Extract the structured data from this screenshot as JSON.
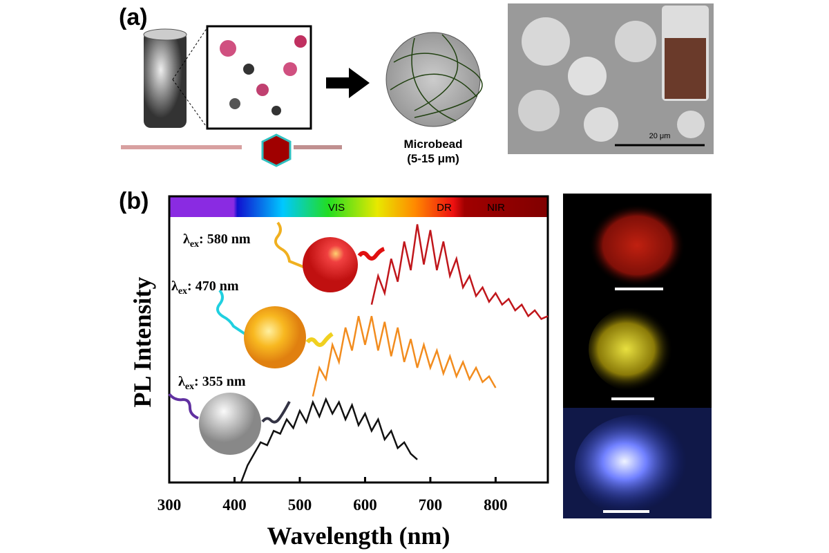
{
  "panel_a": {
    "label": "(a)",
    "microbead_label": "Microbead",
    "microbead_size": "(5-15 μm)",
    "scale_bar_label": "20 μm"
  },
  "panel_b": {
    "label": "(b)",
    "spectrum_labels": [
      "VIS",
      "DR",
      "NIR"
    ],
    "excitations": [
      {
        "symbol": "λ",
        "sub": "ex",
        "text": ": 580 nm"
      },
      {
        "symbol": "λ",
        "sub": "ex",
        "text": ": 470 nm"
      },
      {
        "symbol": "λ",
        "sub": "ex",
        "text": ": 355 nm"
      }
    ]
  },
  "chart_data": {
    "type": "line",
    "x_label": "Wavelength (nm)",
    "y_label": "PL Intensity",
    "xlim": [
      300,
      880
    ],
    "xticks": [
      300,
      400,
      500,
      600,
      700,
      800
    ],
    "ylim": [
      0,
      100
    ],
    "series": [
      {
        "color": "#c0161b",
        "x": [
          610,
          620,
          630,
          640,
          650,
          660,
          670,
          680,
          690,
          700,
          710,
          720,
          730,
          740,
          750,
          760,
          770,
          780,
          790,
          800,
          810,
          820,
          830,
          840,
          850,
          860,
          870,
          880
        ],
        "values": [
          62,
          72,
          66,
          78,
          70,
          84,
          74,
          90,
          76,
          88,
          74,
          84,
          72,
          78,
          68,
          72,
          65,
          68,
          63,
          66,
          62,
          64,
          60,
          62,
          58,
          60,
          57,
          58
        ]
      },
      {
        "color": "#f28c1e",
        "x": [
          520,
          530,
          540,
          550,
          560,
          570,
          580,
          590,
          600,
          610,
          620,
          630,
          640,
          650,
          660,
          670,
          680,
          690,
          700,
          710,
          720,
          730,
          740,
          750,
          760,
          770,
          780,
          790,
          800
        ],
        "values": [
          30,
          40,
          36,
          48,
          42,
          54,
          46,
          58,
          48,
          58,
          46,
          56,
          44,
          54,
          42,
          50,
          40,
          48,
          40,
          46,
          38,
          44,
          37,
          42,
          36,
          40,
          35,
          37,
          33
        ]
      },
      {
        "color": "#111111",
        "x": [
          410,
          420,
          430,
          440,
          450,
          460,
          470,
          480,
          490,
          500,
          510,
          520,
          530,
          540,
          550,
          560,
          570,
          580,
          590,
          600,
          610,
          620,
          630,
          640,
          650,
          660,
          670,
          680
        ],
        "values": [
          0,
          6,
          10,
          14,
          13,
          18,
          17,
          22,
          19,
          25,
          21,
          28,
          23,
          29,
          24,
          28,
          22,
          27,
          20,
          24,
          18,
          22,
          15,
          18,
          12,
          14,
          10,
          8
        ]
      }
    ]
  }
}
